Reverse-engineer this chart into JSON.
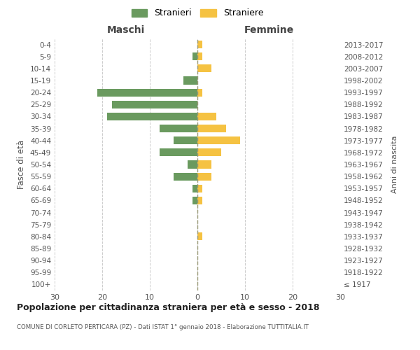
{
  "age_groups": [
    "100+",
    "95-99",
    "90-94",
    "85-89",
    "80-84",
    "75-79",
    "70-74",
    "65-69",
    "60-64",
    "55-59",
    "50-54",
    "45-49",
    "40-44",
    "35-39",
    "30-34",
    "25-29",
    "20-24",
    "15-19",
    "10-14",
    "5-9",
    "0-4"
  ],
  "birth_years": [
    "≤ 1917",
    "1918-1922",
    "1923-1927",
    "1928-1932",
    "1933-1937",
    "1938-1942",
    "1943-1947",
    "1948-1952",
    "1953-1957",
    "1958-1962",
    "1963-1967",
    "1968-1972",
    "1973-1977",
    "1978-1982",
    "1983-1987",
    "1988-1992",
    "1993-1997",
    "1998-2002",
    "2003-2007",
    "2008-2012",
    "2013-2017"
  ],
  "males": [
    0,
    0,
    0,
    0,
    0,
    0,
    0,
    1,
    1,
    5,
    2,
    8,
    5,
    8,
    19,
    18,
    21,
    3,
    0,
    1,
    0
  ],
  "females": [
    0,
    0,
    0,
    0,
    1,
    0,
    0,
    1,
    1,
    3,
    3,
    5,
    9,
    6,
    4,
    0,
    1,
    0,
    3,
    1,
    1
  ],
  "male_color": "#6a9a5f",
  "female_color": "#f5c242",
  "male_label": "Stranieri",
  "female_label": "Straniere",
  "title": "Popolazione per cittadinanza straniera per età e sesso - 2018",
  "subtitle": "COMUNE DI CORLETO PERTICARA (PZ) - Dati ISTAT 1° gennaio 2018 - Elaborazione TUTTITALIA.IT",
  "ylabel_left": "Fasce di età",
  "ylabel_right": "Anni di nascita",
  "xlabel_left": "Maschi",
  "xlabel_right": "Femmine",
  "xlim": 30,
  "background_color": "#ffffff",
  "grid_color": "#cccccc"
}
